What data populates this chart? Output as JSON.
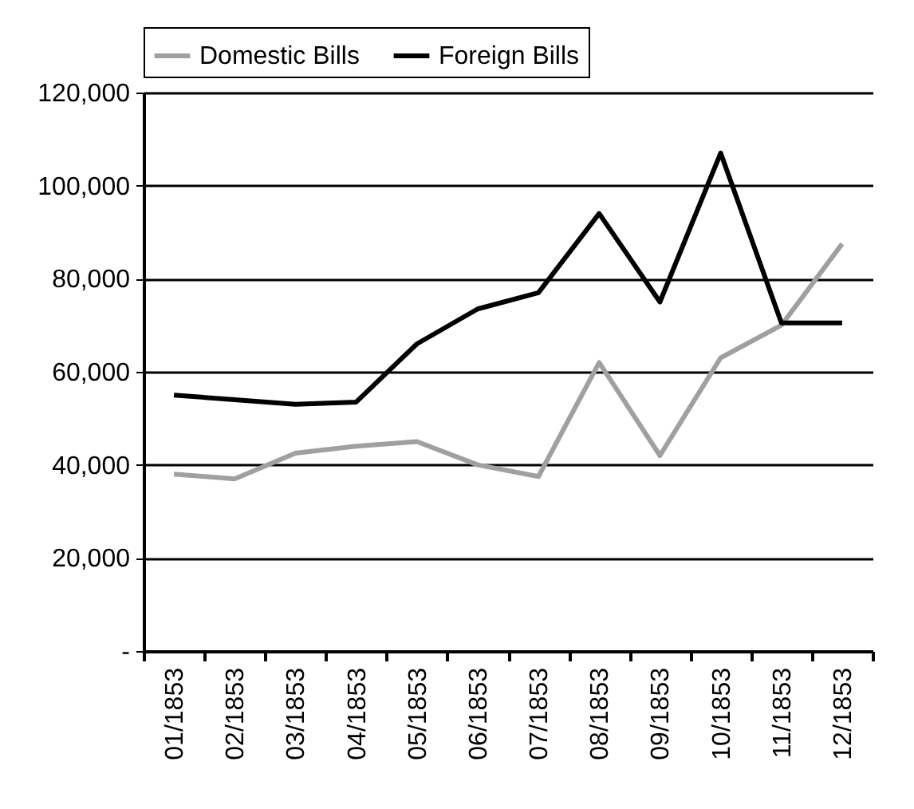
{
  "chart_data": {
    "type": "line",
    "categories": [
      "01/1853",
      "02/1853",
      "03/1853",
      "04/1853",
      "05/1853",
      "06/1853",
      "07/1853",
      "08/1853",
      "09/1853",
      "10/1853",
      "11/1853",
      "12/1853"
    ],
    "series": [
      {
        "name": "Domestic Bills",
        "color": "#a0a0a0",
        "values": [
          38000,
          37000,
          42500,
          44000,
          45000,
          40000,
          37500,
          62000,
          42000,
          63000,
          70000,
          87500
        ]
      },
      {
        "name": "Foreign Bills",
        "color": "#000000",
        "values": [
          55000,
          54000,
          53000,
          53500,
          66000,
          73500,
          77000,
          94000,
          75000,
          107000,
          70500,
          70500
        ]
      }
    ],
    "ylim": [
      0,
      120000
    ],
    "yticks": [
      {
        "value": 0,
        "label": "-"
      },
      {
        "value": 20000,
        "label": "20,000"
      },
      {
        "value": 40000,
        "label": "40,000"
      },
      {
        "value": 60000,
        "label": "60,000"
      },
      {
        "value": 80000,
        "label": "80,000"
      },
      {
        "value": 100000,
        "label": "100,000"
      },
      {
        "value": 120000,
        "label": "120,000"
      }
    ],
    "grid": "y",
    "legend": "top",
    "marker": "none",
    "line_style": "solid"
  }
}
